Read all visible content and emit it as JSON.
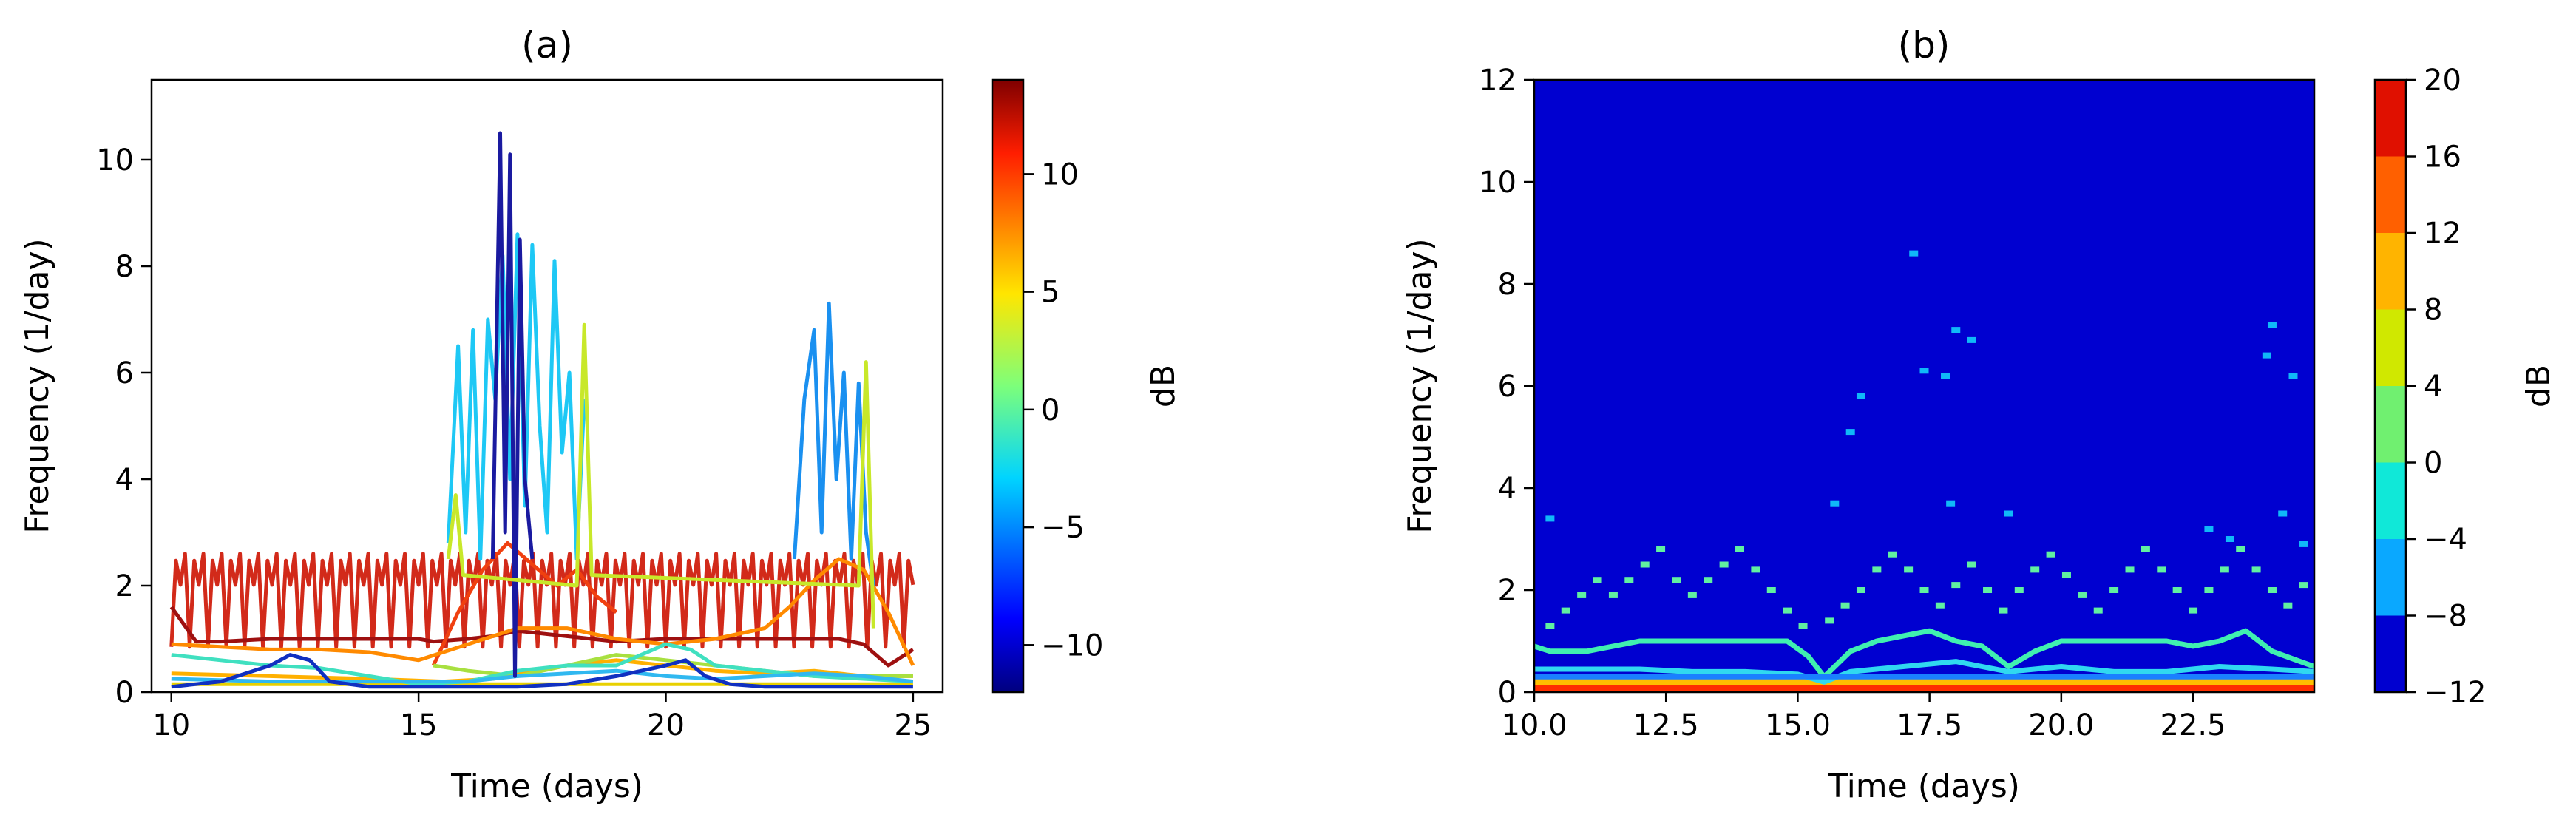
{
  "chart_data": [
    {
      "panel": "a",
      "type": "line",
      "title": "(a)",
      "xlabel": "Time (days)",
      "ylabel": "Frequency (1/day)",
      "xlim": [
        9.6,
        25.6
      ],
      "ylim": [
        0,
        11.5
      ],
      "xticks": [
        10,
        15,
        20,
        25
      ],
      "yticks": [
        0,
        2,
        4,
        6,
        8,
        10
      ],
      "colorbar": {
        "label": "dB",
        "range": [
          -12,
          14
        ],
        "ticks": [
          -10,
          -5,
          0,
          5,
          10
        ]
      },
      "series": [
        {
          "db": 12,
          "color": "#d22a1a",
          "kind": "oscillating",
          "x_range": [
            10,
            25
          ],
          "base": 1.3,
          "amplitude": 1.3,
          "period": 0.37
        },
        {
          "db": 14,
          "color": "#9e1010",
          "kind": "band",
          "x": [
            10,
            10.5,
            11,
            12,
            13,
            14,
            15,
            15.3,
            16,
            16.5,
            17,
            17.5,
            18,
            18.5,
            19,
            20,
            21,
            22,
            22.5,
            23,
            23.5,
            24,
            24.5,
            25
          ],
          "y": [
            1.6,
            0.95,
            0.95,
            1.0,
            1.0,
            1.0,
            1.0,
            0.95,
            1.0,
            1.05,
            1.15,
            1.1,
            1.05,
            1.0,
            0.95,
            1.0,
            1.0,
            1.0,
            1.0,
            1.0,
            1.0,
            0.9,
            0.5,
            0.8
          ]
        },
        {
          "db": 10,
          "color": "#f04010",
          "kind": "band",
          "x": [
            15.3,
            15.8,
            16.3,
            16.8,
            17.3,
            17.8,
            18.2,
            18.6,
            19.0
          ],
          "y": [
            0.5,
            1.5,
            2.3,
            2.8,
            2.4,
            2.0,
            2.3,
            1.8,
            1.5
          ]
        },
        {
          "db": 8,
          "color": "#ff8a00",
          "kind": "band",
          "x": [
            10,
            11,
            12,
            13,
            14,
            15,
            16,
            17,
            18,
            19,
            20,
            21,
            22,
            22.5,
            23,
            23.5,
            24,
            24.5,
            25
          ],
          "y": [
            0.9,
            0.85,
            0.8,
            0.8,
            0.75,
            0.6,
            0.9,
            1.2,
            1.2,
            1.0,
            0.9,
            1.0,
            1.2,
            1.6,
            2.1,
            2.5,
            2.3,
            1.5,
            0.5
          ]
        },
        {
          "db": 7,
          "color": "#ffb000",
          "kind": "band",
          "x": [
            10,
            12,
            14,
            15.5,
            16.5,
            18,
            19,
            20,
            21,
            22,
            23,
            24,
            25
          ],
          "y": [
            0.35,
            0.3,
            0.25,
            0.2,
            0.25,
            0.5,
            0.6,
            0.5,
            0.4,
            0.35,
            0.4,
            0.3,
            0.3
          ]
        },
        {
          "db": 5,
          "color": "#e8d000",
          "kind": "band",
          "x": [
            10,
            12,
            14,
            16,
            18,
            20,
            22,
            24,
            25
          ],
          "y": [
            0.15,
            0.15,
            0.15,
            0.15,
            0.15,
            0.15,
            0.15,
            0.15,
            0.15
          ]
        },
        {
          "db": 2,
          "color": "#a8e040",
          "kind": "band",
          "x": [
            15.3,
            16,
            17,
            18,
            19,
            20,
            21,
            22,
            23,
            24,
            25
          ],
          "y": [
            0.5,
            0.4,
            0.3,
            0.5,
            0.7,
            0.6,
            0.5,
            0.4,
            0.3,
            0.3,
            0.3
          ]
        },
        {
          "db": -2,
          "color": "#40e0c0",
          "kind": "band",
          "x": [
            10,
            11,
            12,
            13,
            14,
            15,
            16,
            17,
            18,
            19,
            19.5,
            20,
            20.5,
            21,
            22,
            23,
            24,
            25
          ],
          "y": [
            0.7,
            0.6,
            0.5,
            0.45,
            0.3,
            0.15,
            0.2,
            0.4,
            0.5,
            0.5,
            0.7,
            0.9,
            0.8,
            0.5,
            0.4,
            0.3,
            0.25,
            0.2
          ]
        },
        {
          "db": -4,
          "color": "#30b8f0",
          "kind": "band",
          "x": [
            10,
            12,
            14,
            16,
            17,
            18,
            19,
            20,
            21,
            22,
            23,
            24,
            25
          ],
          "y": [
            0.25,
            0.2,
            0.2,
            0.2,
            0.3,
            0.35,
            0.4,
            0.3,
            0.25,
            0.3,
            0.35,
            0.3,
            0.2
          ]
        },
        {
          "db": -10,
          "color": "#1030c0",
          "kind": "band",
          "x": [
            10,
            11,
            12,
            12.4,
            12.8,
            13.2,
            14,
            15,
            16,
            17,
            18,
            19,
            20,
            20.4,
            20.8,
            21.3,
            22,
            23,
            24,
            25
          ],
          "y": [
            0.1,
            0.2,
            0.5,
            0.7,
            0.6,
            0.2,
            0.1,
            0.1,
            0.1,
            0.1,
            0.15,
            0.3,
            0.5,
            0.6,
            0.3,
            0.15,
            0.1,
            0.1,
            0.1,
            0.1
          ]
        },
        {
          "db": -5,
          "color": "#1ec8f5",
          "kind": "spiky",
          "x": [
            15.6,
            15.8,
            15.95,
            16.1,
            16.25,
            16.4,
            16.55,
            16.7,
            16.85,
            17.0,
            17.15,
            17.3,
            17.45,
            17.6,
            17.75,
            17.9,
            18.05,
            18.2,
            18.35
          ],
          "y": [
            2.8,
            6.5,
            3.0,
            6.8,
            2.5,
            7.0,
            5.5,
            8.2,
            4.0,
            8.6,
            3.5,
            8.4,
            5.0,
            3.0,
            8.1,
            4.5,
            6.0,
            2.5,
            5.5
          ]
        },
        {
          "db": -12,
          "color": "#1a1aa0",
          "kind": "spiky",
          "x": [
            16.5,
            16.65,
            16.75,
            16.85,
            16.95,
            17.05,
            17.15,
            17.3
          ],
          "y": [
            2.5,
            10.5,
            3.0,
            10.1,
            0.3,
            8.5,
            4.0,
            2.5
          ]
        },
        {
          "db": -6,
          "color": "#1a90f0",
          "kind": "spiky",
          "x": [
            22.6,
            22.8,
            23.0,
            23.15,
            23.3,
            23.45,
            23.6,
            23.75,
            23.9,
            24.05,
            24.2
          ],
          "y": [
            2.5,
            5.5,
            6.8,
            3.0,
            7.3,
            4.0,
            6.0,
            2.5,
            5.8,
            3.0,
            2.0
          ]
        },
        {
          "db": 3,
          "color": "#c8e82a",
          "kind": "spiky",
          "x": [
            15.6,
            15.75,
            15.9,
            18.2,
            18.35,
            18.5,
            23.9,
            24.05,
            24.2
          ],
          "y": [
            2.5,
            3.7,
            2.2,
            2.0,
            6.9,
            2.2,
            2.0,
            6.2,
            1.2
          ]
        }
      ]
    },
    {
      "panel": "b",
      "type": "heatmap",
      "title": "(b)",
      "xlabel": "Time (days)",
      "ylabel": "Frequency (1/day)",
      "xlim": [
        10.0,
        24.8
      ],
      "ylim": [
        0,
        12
      ],
      "xticks": [
        10.0,
        12.5,
        15.0,
        17.5,
        20.0,
        22.5
      ],
      "xtick_labels": [
        "10.0",
        "12.5",
        "15.0",
        "17.5",
        "20.0",
        "22.5"
      ],
      "yticks": [
        0,
        2,
        4,
        6,
        8,
        10,
        12
      ],
      "background_db": -12,
      "colorbar": {
        "label": "dB",
        "levels": [
          -12,
          -8,
          -4,
          0,
          4,
          8,
          12,
          16,
          20
        ],
        "tick_labels": [
          "−12",
          "−8",
          "−4",
          "0",
          "4",
          "8",
          "12",
          "16",
          "20"
        ],
        "colors": [
          "#0000d0",
          "#0a50ff",
          "#0aa8ff",
          "#10e8d8",
          "#70f070",
          "#d0e800",
          "#ffb400",
          "#ff6000",
          "#e01000"
        ]
      },
      "ridges": [
        {
          "db": 18,
          "color": "#ff3000",
          "x": [
            10,
            12,
            14,
            16,
            18,
            20,
            22,
            24.8
          ],
          "y": [
            0.08,
            0.08,
            0.08,
            0.08,
            0.08,
            0.08,
            0.08,
            0.08
          ]
        },
        {
          "db": 10,
          "color": "#ffc000",
          "x": [
            10,
            12,
            14,
            16,
            18,
            20,
            22,
            24.8
          ],
          "y": [
            0.2,
            0.2,
            0.2,
            0.2,
            0.2,
            0.2,
            0.2,
            0.2
          ]
        },
        {
          "db": 4,
          "color": "#40f0b0",
          "x": [
            10,
            10.3,
            11,
            11.5,
            12,
            13,
            14,
            14.8,
            15.2,
            15.5,
            16,
            16.5,
            17,
            17.5,
            18,
            18.5,
            19,
            19.5,
            20,
            21,
            22,
            22.5,
            23,
            23.5,
            24,
            24.8
          ],
          "y": [
            0.9,
            0.8,
            0.8,
            0.9,
            1.0,
            1.0,
            1.0,
            1.0,
            0.7,
            0.3,
            0.8,
            1.0,
            1.1,
            1.2,
            1.0,
            0.9,
            0.5,
            0.8,
            1.0,
            1.0,
            1.0,
            0.9,
            1.0,
            1.2,
            0.8,
            0.5
          ]
        },
        {
          "db": 0,
          "color": "#30d8f0",
          "x": [
            10,
            11,
            12,
            13,
            14,
            15,
            15.5,
            16,
            17,
            18,
            18.5,
            19,
            20,
            21,
            22,
            23,
            24,
            24.8
          ],
          "y": [
            0.45,
            0.45,
            0.45,
            0.4,
            0.4,
            0.35,
            0.2,
            0.4,
            0.5,
            0.6,
            0.5,
            0.4,
            0.5,
            0.4,
            0.4,
            0.5,
            0.45,
            0.4
          ]
        },
        {
          "db": -6,
          "color": "#1a80ff",
          "x": [
            10,
            12,
            14,
            16,
            18,
            20,
            22,
            24.8
          ],
          "y": [
            0.3,
            0.3,
            0.3,
            0.3,
            0.3,
            0.3,
            0.3,
            0.3
          ]
        }
      ],
      "dots": [
        {
          "db": 2,
          "color": "#60f0a0",
          "points": [
            [
              10.3,
              1.3
            ],
            [
              10.6,
              1.6
            ],
            [
              10.9,
              1.9
            ],
            [
              11.2,
              2.2
            ],
            [
              11.5,
              1.9
            ],
            [
              11.8,
              2.2
            ],
            [
              12.1,
              2.5
            ],
            [
              12.4,
              2.8
            ],
            [
              12.7,
              2.2
            ],
            [
              13.0,
              1.9
            ],
            [
              13.3,
              2.2
            ],
            [
              13.6,
              2.5
            ],
            [
              13.9,
              2.8
            ],
            [
              14.2,
              2.4
            ],
            [
              14.5,
              2.0
            ],
            [
              14.8,
              1.6
            ],
            [
              15.1,
              1.3
            ],
            [
              15.6,
              1.4
            ],
            [
              15.9,
              1.7
            ],
            [
              16.2,
              2.0
            ],
            [
              16.5,
              2.4
            ],
            [
              16.8,
              2.7
            ],
            [
              17.1,
              2.4
            ],
            [
              17.4,
              2.0
            ],
            [
              17.7,
              1.7
            ],
            [
              18.0,
              2.1
            ],
            [
              18.3,
              2.5
            ],
            [
              18.6,
              2.0
            ],
            [
              18.9,
              1.6
            ],
            [
              19.2,
              2.0
            ],
            [
              19.5,
              2.4
            ],
            [
              19.8,
              2.7
            ],
            [
              20.1,
              2.3
            ],
            [
              20.4,
              1.9
            ],
            [
              20.7,
              1.6
            ],
            [
              21.0,
              2.0
            ],
            [
              21.3,
              2.4
            ],
            [
              21.6,
              2.8
            ],
            [
              21.9,
              2.4
            ],
            [
              22.2,
              2.0
            ],
            [
              22.5,
              1.6
            ],
            [
              22.8,
              2.0
            ],
            [
              23.1,
              2.4
            ],
            [
              23.4,
              2.8
            ],
            [
              23.7,
              2.4
            ],
            [
              24.0,
              2.0
            ],
            [
              24.3,
              1.7
            ],
            [
              24.6,
              2.1
            ]
          ]
        },
        {
          "db": -4,
          "color": "#10b8f8",
          "points": [
            [
              10.3,
              3.4
            ],
            [
              15.7,
              3.7
            ],
            [
              16.2,
              5.8
            ],
            [
              16.0,
              5.1
            ],
            [
              17.2,
              8.6
            ],
            [
              17.4,
              6.3
            ],
            [
              17.8,
              6.2
            ],
            [
              18.0,
              7.1
            ],
            [
              18.3,
              6.9
            ],
            [
              17.9,
              3.7
            ],
            [
              19.0,
              3.5
            ],
            [
              22.8,
              3.2
            ],
            [
              23.2,
              3.0
            ],
            [
              23.9,
              6.6
            ],
            [
              24.0,
              7.2
            ],
            [
              24.2,
              3.5
            ],
            [
              24.4,
              6.2
            ],
            [
              24.6,
              2.9
            ]
          ]
        }
      ]
    }
  ]
}
